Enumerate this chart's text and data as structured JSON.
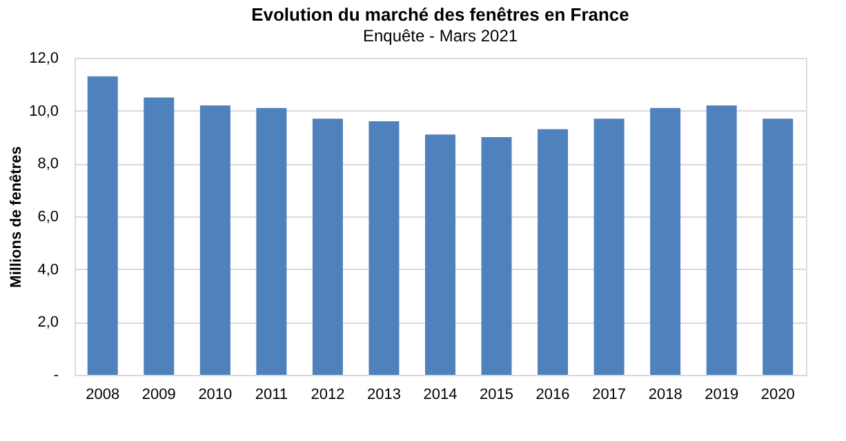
{
  "chart_data": {
    "type": "bar",
    "title": "Evolution du marché des fenêtres en France",
    "subtitle": "Enquête - Mars 2021",
    "ylabel": "Millions de fenêtres",
    "categories": [
      "2008",
      "2009",
      "2010",
      "2011",
      "2012",
      "2013",
      "2014",
      "2015",
      "2016",
      "2017",
      "2018",
      "2019",
      "2020"
    ],
    "values": [
      11.3,
      10.5,
      10.2,
      10.1,
      9.7,
      9.6,
      9.1,
      9.0,
      9.3,
      9.7,
      10.1,
      10.2,
      9.7
    ],
    "color": "#4f81bd",
    "ylim": [
      0,
      12
    ],
    "yticks": [
      {
        "value": 0,
        "label": "-"
      },
      {
        "value": 2,
        "label": "2,0"
      },
      {
        "value": 4,
        "label": "4,0"
      },
      {
        "value": 6,
        "label": "6,0"
      },
      {
        "value": 8,
        "label": "8,0"
      },
      {
        "value": 10,
        "label": "10,0"
      },
      {
        "value": 12,
        "label": "12,0"
      }
    ],
    "grid": "y"
  }
}
